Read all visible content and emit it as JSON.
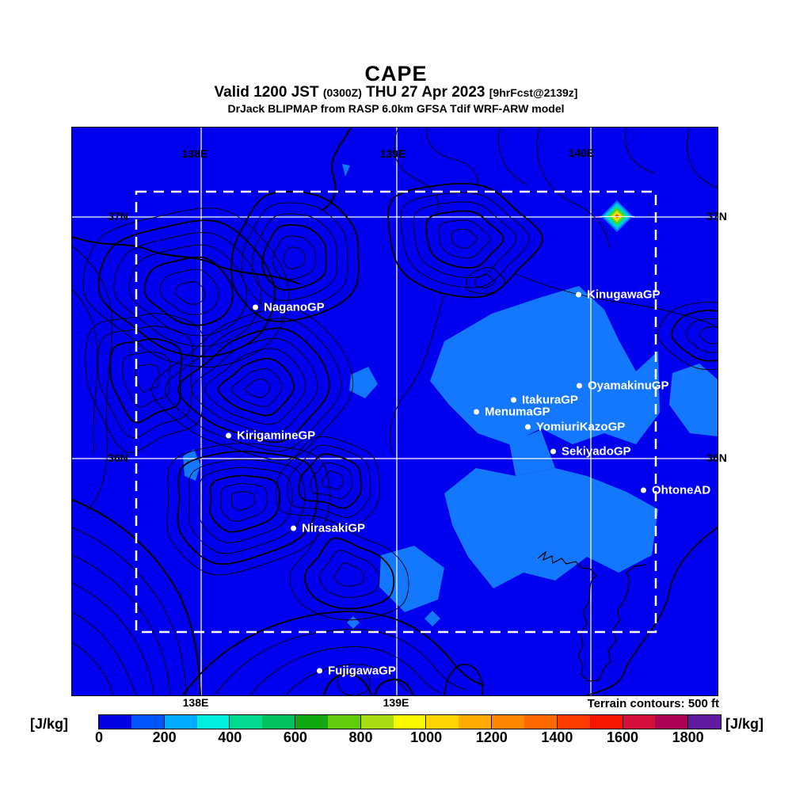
{
  "header": {
    "title": "CAPE",
    "valid_prefix": "Valid 1200 JST",
    "valid_z": "(0300Z)",
    "valid_date": "THU 27 Apr 2023",
    "valid_fcst": "[9hrFcst@2139z]",
    "model_line": "DrJack BLIPMAP from RASP 6.0km GFSA Tdif WRF-ARW model"
  },
  "map": {
    "grid": {
      "top": [
        "138E",
        "139E",
        "140E"
      ],
      "bottom": [
        "138E",
        "139E"
      ],
      "left": [
        "37N",
        "36N"
      ],
      "right": [
        "37N",
        "36N"
      ]
    },
    "sites": [
      {
        "label": "NaganoGP"
      },
      {
        "label": "KinugawaGP"
      },
      {
        "label": "OyamakinuGP"
      },
      {
        "label": "ItakuraGP"
      },
      {
        "label": "MenumaGP"
      },
      {
        "label": "YomiuriKazoGP"
      },
      {
        "label": "SekiyadoGP"
      },
      {
        "label": "KirigamineGP"
      },
      {
        "label": "OhtoneAD"
      },
      {
        "label": "NirasakiGP"
      },
      {
        "label": "FujigawaGP"
      }
    ]
  },
  "footer": {
    "terrain_note": "Terrain contours: 500 ft",
    "units_left": "[J/kg]",
    "units_right": "[J/kg]"
  },
  "colorbar": {
    "ticks": [
      "0",
      "200",
      "400",
      "600",
      "800",
      "1000",
      "1200",
      "1400",
      "1600",
      "1800"
    ],
    "colors": [
      "#0000e0",
      "#0055ff",
      "#00aaff",
      "#00eedd",
      "#00d98f",
      "#00c060",
      "#12a812",
      "#63cc0e",
      "#a8dc14",
      "#f8f800",
      "#ffd400",
      "#ffaa00",
      "#ff8800",
      "#ff6a00",
      "#ff3c00",
      "#f51500",
      "#d40f3c",
      "#aa0055",
      "#5f1aa0"
    ]
  },
  "chart_data": {
    "type": "heatmap",
    "title": "CAPE",
    "units": "J/kg",
    "scale_ticks": [
      0,
      200,
      400,
      600,
      800,
      1000,
      1200,
      1400,
      1600,
      1800
    ],
    "scale_step_per_color": 100,
    "lon_gridlines": [
      "138E",
      "139E",
      "140E"
    ],
    "lat_gridlines": [
      "37N",
      "36N"
    ],
    "terrain_contour_interval": "500 ft",
    "background_cape_range": "0-100 J/kg (deep blue over most of domain)",
    "patch_cape_range": "100-300 J/kg (lighter blue patches over Kanto plain and coast)",
    "hotspot": {
      "near": "just east of 140E on 37N line",
      "value": "> 1800 J/kg (rainbow bullseye)"
    },
    "inner_domain": "dashed white rectangle spanning approx 137.7E-140.3E, 35.4N-37.1N"
  }
}
